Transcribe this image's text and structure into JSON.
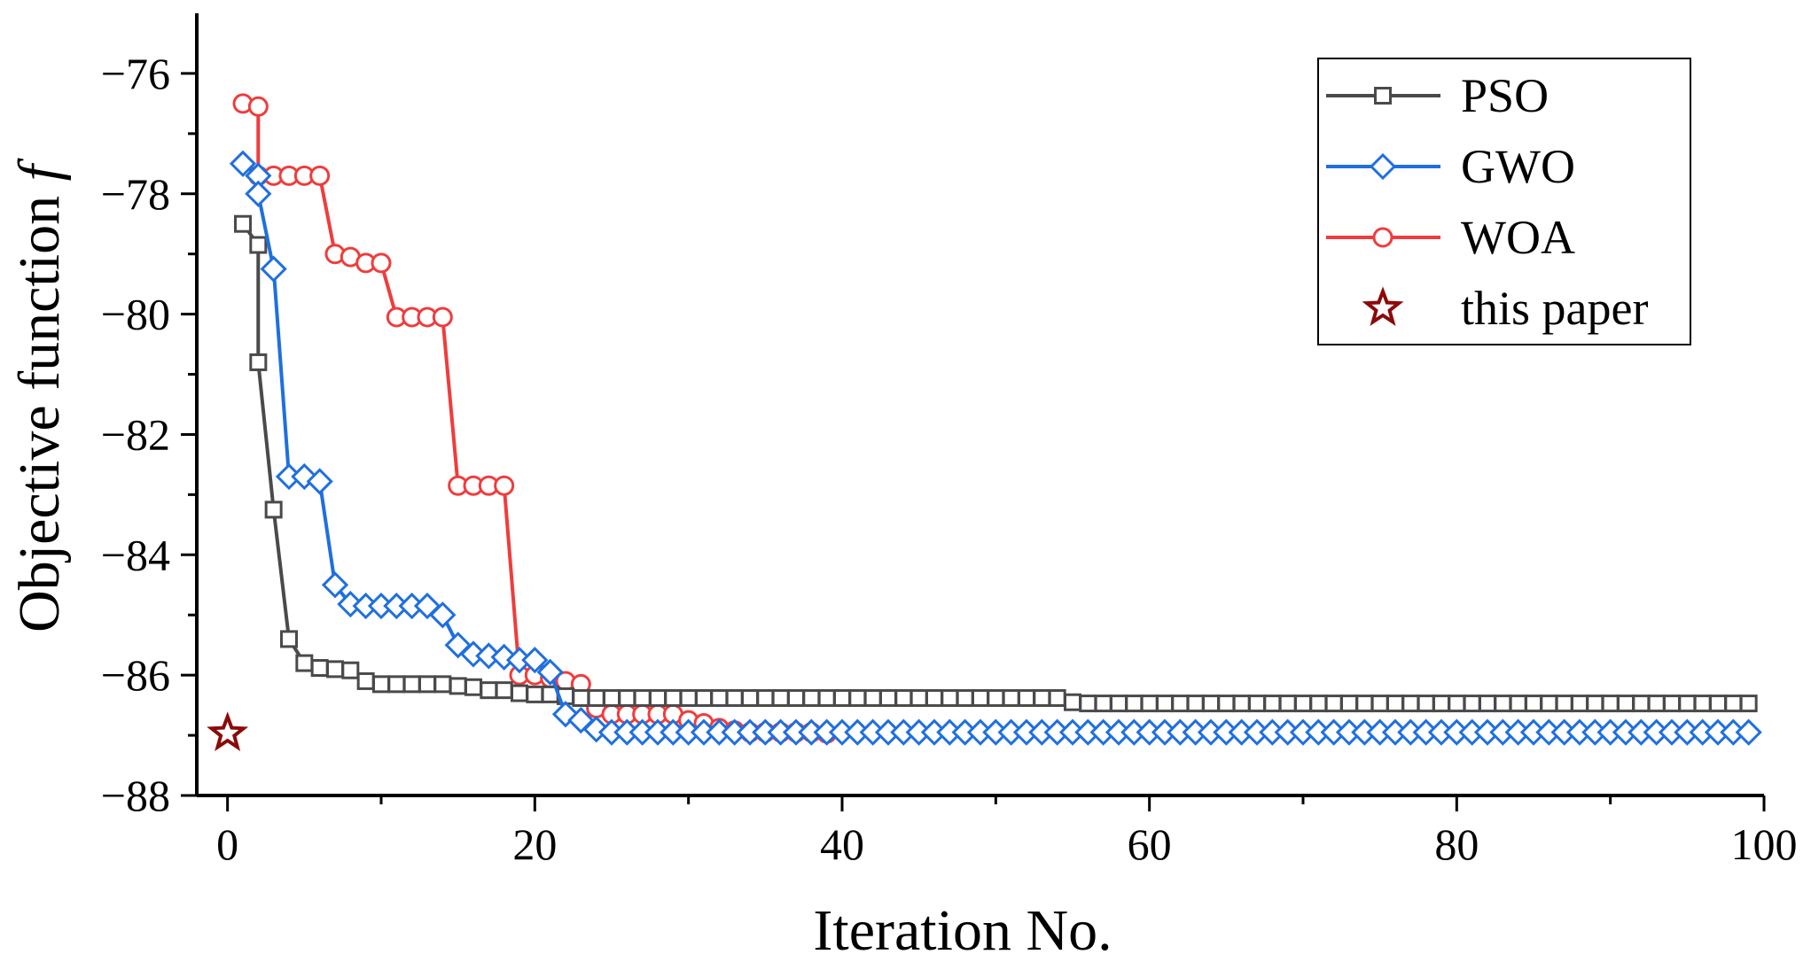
{
  "chart_data": {
    "type": "line",
    "title": "",
    "xlabel": "Iteration No.",
    "ylabel": "Objective function ",
    "ylabel_symbol": "f",
    "xlim": [
      -2,
      100
    ],
    "ylim": [
      -88,
      -75
    ],
    "xticks": [
      0,
      20,
      40,
      60,
      80,
      100
    ],
    "yticks": [
      -76,
      -78,
      -80,
      -82,
      -84,
      -86,
      -88
    ],
    "xtick_labels": [
      "0",
      "20",
      "40",
      "60",
      "80",
      "100"
    ],
    "ytick_labels": [
      "−76",
      "−78",
      "−80",
      "−82",
      "−84",
      "−86",
      "−88"
    ],
    "grid": false,
    "legend_position": "top-right",
    "series": [
      {
        "name": "PSO",
        "color": "#4a4a4a",
        "marker": "square",
        "x": [
          1,
          2,
          2,
          3,
          4,
          5,
          6,
          7,
          8,
          9,
          10,
          11,
          12,
          13,
          14,
          15,
          16,
          17,
          18,
          19,
          20,
          21,
          22,
          23,
          24,
          25,
          26,
          27,
          28,
          29,
          30,
          31,
          32,
          33,
          34,
          35,
          36,
          37,
          38,
          39,
          40,
          41,
          42,
          43,
          44,
          45,
          46,
          47,
          48,
          49,
          50,
          51,
          52,
          53,
          54,
          55,
          56,
          57,
          58,
          59,
          60,
          61,
          62,
          63,
          64,
          65,
          66,
          67,
          68,
          69,
          70,
          71,
          72,
          73,
          74,
          75,
          76,
          77,
          78,
          79,
          80,
          81,
          82,
          83,
          84,
          85,
          86,
          87,
          88,
          89,
          90,
          91,
          92,
          93,
          94,
          95,
          96,
          97,
          98,
          99
        ],
        "values": [
          -78.5,
          -78.85,
          -80.8,
          -83.25,
          -85.4,
          -85.8,
          -85.88,
          -85.9,
          -85.92,
          -86.1,
          -86.15,
          -86.15,
          -86.15,
          -86.15,
          -86.15,
          -86.18,
          -86.2,
          -86.25,
          -86.25,
          -86.3,
          -86.32,
          -86.32,
          -86.35,
          -86.38,
          -86.38,
          -86.38,
          -86.38,
          -86.38,
          -86.38,
          -86.38,
          -86.38,
          -86.38,
          -86.38,
          -86.38,
          -86.38,
          -86.38,
          -86.38,
          -86.38,
          -86.38,
          -86.38,
          -86.38,
          -86.38,
          -86.38,
          -86.38,
          -86.38,
          -86.38,
          -86.38,
          -86.38,
          -86.38,
          -86.38,
          -86.38,
          -86.38,
          -86.38,
          -86.38,
          -86.38,
          -86.45,
          -86.47,
          -86.47,
          -86.47,
          -86.47,
          -86.47,
          -86.47,
          -86.47,
          -86.47,
          -86.47,
          -86.47,
          -86.47,
          -86.47,
          -86.47,
          -86.47,
          -86.47,
          -86.47,
          -86.47,
          -86.47,
          -86.47,
          -86.47,
          -86.47,
          -86.47,
          -86.47,
          -86.47,
          -86.47,
          -86.47,
          -86.47,
          -86.47,
          -86.47,
          -86.47,
          -86.47,
          -86.47,
          -86.47,
          -86.47,
          -86.47,
          -86.47,
          -86.47,
          -86.47,
          -86.47,
          -86.47,
          -86.47,
          -86.47,
          -86.47,
          -86.47
        ]
      },
      {
        "name": "GWO",
        "color": "#1f6fe0",
        "marker": "diamond",
        "x": [
          1,
          2,
          2,
          3,
          4,
          5,
          6,
          7,
          8,
          9,
          10,
          11,
          12,
          13,
          14,
          15,
          16,
          17,
          18,
          19,
          20,
          21,
          22,
          23,
          24,
          25,
          26,
          27,
          28,
          29,
          30,
          31,
          32,
          33,
          34,
          35,
          36,
          37,
          38,
          39,
          40,
          41,
          42,
          43,
          44,
          45,
          46,
          47,
          48,
          49,
          50,
          51,
          52,
          53,
          54,
          55,
          56,
          57,
          58,
          59,
          60,
          61,
          62,
          63,
          64,
          65,
          66,
          67,
          68,
          69,
          70,
          71,
          72,
          73,
          74,
          75,
          76,
          77,
          78,
          79,
          80,
          81,
          82,
          83,
          84,
          85,
          86,
          87,
          88,
          89,
          90,
          91,
          92,
          93,
          94,
          95,
          96,
          97,
          98,
          99
        ],
        "values": [
          -77.5,
          -77.7,
          -78.0,
          -79.25,
          -82.7,
          -82.7,
          -82.78,
          -84.5,
          -84.82,
          -84.85,
          -84.85,
          -84.85,
          -84.85,
          -84.85,
          -85.0,
          -85.5,
          -85.65,
          -85.68,
          -85.7,
          -85.75,
          -85.75,
          -85.95,
          -86.65,
          -86.75,
          -86.9,
          -86.95,
          -86.95,
          -86.95,
          -86.95,
          -86.95,
          -86.95,
          -86.95,
          -86.95,
          -86.95,
          -86.95,
          -86.95,
          -86.95,
          -86.95,
          -86.95,
          -86.95,
          -86.95,
          -86.95,
          -86.95,
          -86.95,
          -86.95,
          -86.95,
          -86.95,
          -86.95,
          -86.95,
          -86.95,
          -86.95,
          -86.95,
          -86.95,
          -86.95,
          -86.95,
          -86.95,
          -86.95,
          -86.95,
          -86.95,
          -86.95,
          -86.95,
          -86.95,
          -86.95,
          -86.95,
          -86.95,
          -86.95,
          -86.95,
          -86.95,
          -86.95,
          -86.95,
          -86.95,
          -86.95,
          -86.95,
          -86.95,
          -86.95,
          -86.95,
          -86.95,
          -86.95,
          -86.95,
          -86.95,
          -86.95,
          -86.95,
          -86.95,
          -86.95,
          -86.95,
          -86.95,
          -86.95,
          -86.95,
          -86.95,
          -86.95,
          -86.95,
          -86.95,
          -86.95,
          -86.95,
          -86.95,
          -86.95,
          -86.95,
          -86.95,
          -86.95,
          -86.95
        ]
      },
      {
        "name": "WOA",
        "color": "#f03c3c",
        "marker": "circle",
        "x": [
          1,
          2,
          2,
          3,
          4,
          5,
          6,
          7,
          8,
          9,
          10,
          11,
          12,
          13,
          14,
          15,
          16,
          17,
          18,
          19,
          20,
          21,
          22,
          23,
          24,
          25,
          26,
          27,
          28,
          29,
          30,
          31,
          32,
          33,
          34,
          35,
          36,
          37,
          38,
          39
        ],
        "values": [
          -76.5,
          -76.55,
          -77.7,
          -77.7,
          -77.7,
          -77.7,
          -77.7,
          -79.0,
          -79.05,
          -79.15,
          -79.15,
          -80.05,
          -80.05,
          -80.05,
          -80.05,
          -82.85,
          -82.85,
          -82.85,
          -82.85,
          -86.0,
          -86.0,
          -86.05,
          -86.1,
          -86.15,
          -86.55,
          -86.65,
          -86.65,
          -86.65,
          -86.65,
          -86.65,
          -86.75,
          -86.8,
          -86.88,
          -86.92,
          -86.95,
          -86.95,
          -86.95,
          -86.95,
          -86.95,
          -86.97
        ]
      },
      {
        "name": "this paper",
        "color": "#8b0a0a",
        "marker": "star",
        "x": [
          0
        ],
        "values": [
          -86.97
        ]
      }
    ]
  }
}
